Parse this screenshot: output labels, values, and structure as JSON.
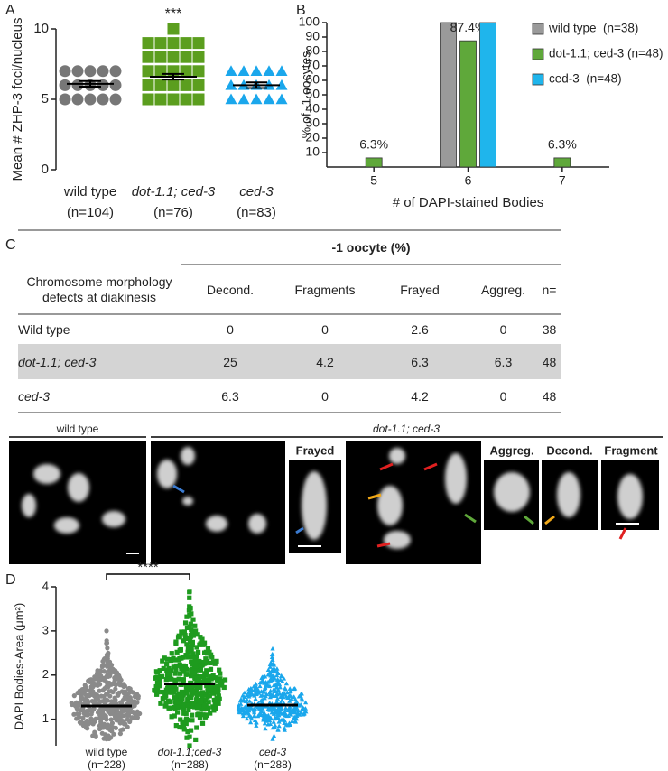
{
  "panel_labels": {
    "a": "A",
    "b": "B",
    "c": "C",
    "d": "D"
  },
  "chart_data": [
    {
      "type": "dot",
      "ylabel": "Mean # ZHP-3 foci/nucleus",
      "categories": [
        "wild type",
        "dot-1.1; ced-3",
        "ced-3"
      ],
      "n_labels": [
        "(n=104)",
        "(n=76)",
        "(n=83)"
      ],
      "colors": [
        "#777777",
        "#5b9e1e",
        "#1aa7ec"
      ],
      "markers": [
        "circle",
        "square",
        "triangle"
      ],
      "levels": [
        [
          5,
          6,
          7
        ],
        [
          5,
          6,
          7,
          8,
          9,
          10
        ],
        [
          5,
          6,
          7
        ]
      ],
      "means": [
        6.1,
        6.6,
        6.0
      ],
      "errors": [
        0.2,
        0.2,
        0.2
      ],
      "ylim": [
        0,
        10
      ],
      "yticks": [
        0,
        5,
        10
      ],
      "annotation": "***",
      "annotation_category": 1
    },
    {
      "type": "bar",
      "ylabel": "% of -1 oocytes",
      "xlabel": "# of DAPI-stained Bodies",
      "categories": [
        "5",
        "6",
        "7"
      ],
      "series": [
        {
          "name": "wild type  (n=38)",
          "color": "#9a9a9a",
          "values": [
            0,
            100,
            0
          ]
        },
        {
          "name": "dot-1.1; ced-3 (n=48)",
          "color": "#5fa83a",
          "values": [
            6.3,
            87.4,
            6.3
          ],
          "value_labels": [
            "6.3%",
            "87.4%",
            "6.3%"
          ]
        },
        {
          "name": "ced-3  (n=48)",
          "color": "#1fb5ec",
          "values": [
            0,
            100,
            0
          ]
        }
      ],
      "ylim": [
        0,
        100
      ],
      "yticks": [
        10,
        20,
        30,
        40,
        50,
        60,
        70,
        80,
        90,
        100
      ],
      "legend": "right"
    },
    {
      "type": "swarm",
      "ylabel": "DAPI Bodies-Area (μm²)",
      "categories": [
        "wild type",
        "dot-1.1;ced-3",
        "ced-3"
      ],
      "n_labels": [
        "(n=228)",
        "(n=288)",
        "(n=288)"
      ],
      "colors": [
        "#8a8a8a",
        "#1e9b1e",
        "#1aa7ec"
      ],
      "markers": [
        "circle",
        "square",
        "triangle"
      ],
      "ranges": [
        [
          0.55,
          3.0
        ],
        [
          0.4,
          3.9
        ],
        [
          0.55,
          2.6
        ]
      ],
      "means": [
        1.3,
        1.8,
        1.32
      ],
      "errors": [
        0.03,
        0.03,
        0.03
      ],
      "ylim": [
        0.4,
        4
      ],
      "yticks": [
        1,
        2,
        3,
        4
      ],
      "annotation": "****",
      "annotation_span": [
        0,
        1
      ]
    }
  ],
  "table": {
    "group_header": "-1 oocyte (%)",
    "row_header": "Chromosome morphology defects at diakinesis",
    "columns": [
      "Decond.",
      "Fragments",
      "Frayed",
      "Aggreg.",
      "n="
    ],
    "rows": [
      {
        "label": "Wild type",
        "cells": [
          0,
          0,
          2.6,
          0,
          38
        ]
      },
      {
        "label": "dot-1.1; ced-3",
        "cells": [
          25,
          4.2,
          6.3,
          6.3,
          48
        ]
      },
      {
        "label": "ced-3",
        "cells": [
          6.3,
          0,
          4.2,
          0,
          48
        ]
      }
    ]
  },
  "micrographs": {
    "labels": [
      "wild type",
      "dot-1.1; ced-3",
      "Frayed",
      "Aggreg.",
      "Decond.",
      "Fragment"
    ]
  }
}
